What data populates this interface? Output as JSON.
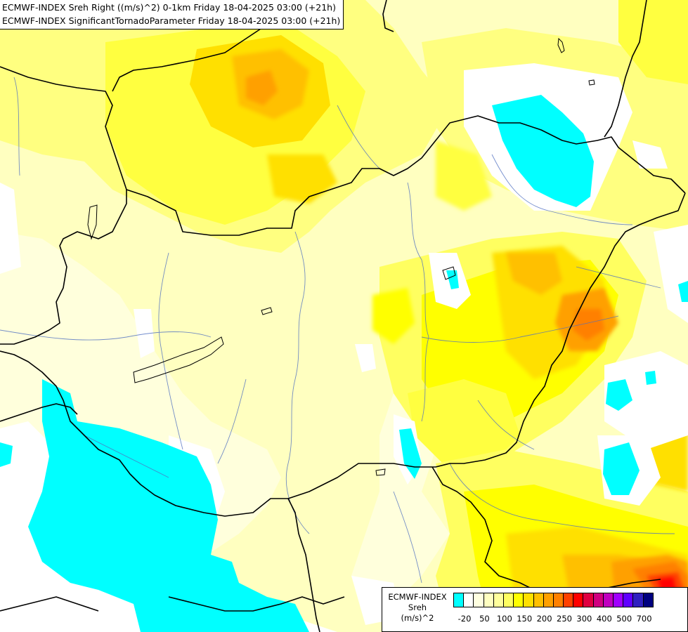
{
  "title": {
    "line1": "ECMWF-INDEX Sreh Right ((m/s)^2) 0-1km Friday 18-04-2025 03:00 (+21h)",
    "line2": "ECMWF-INDEX SignificantTornadoParameter Friday 18-04-2025 03:00 (+21h)"
  },
  "legend": {
    "source": "ECMWF-INDEX",
    "variable": "Sreh",
    "unit": "(m/s)^2",
    "colors": [
      "#00ffff",
      "#ffffff",
      "#ffffe0",
      "#ffffc0",
      "#ffff9c",
      "#ffff60",
      "#ffff00",
      "#ffe000",
      "#ffc000",
      "#ffa000",
      "#ff8000",
      "#ff4000",
      "#ff0000",
      "#e00040",
      "#d00080",
      "#c000c0",
      "#a000ff",
      "#6000ff",
      "#3020c0",
      "#000080"
    ],
    "ticks": [
      "-20",
      "50",
      "100",
      "150",
      "200",
      "250",
      "300",
      "400",
      "500",
      "700"
    ]
  }
}
